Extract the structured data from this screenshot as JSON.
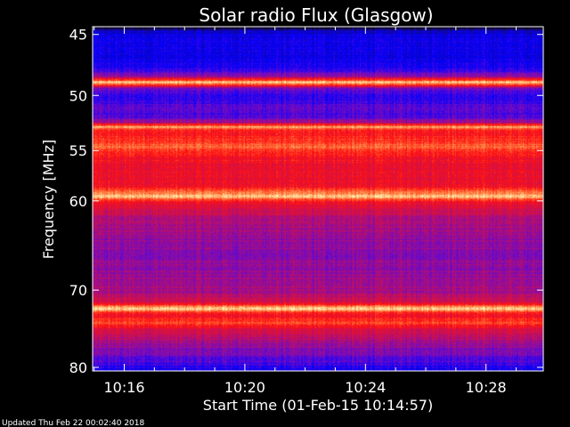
{
  "chart_data": {
    "type": "heatmap",
    "title": "Solar radio Flux (Glasgow)",
    "xlabel": "Start Time (01-Feb-15 10:14:57)",
    "ylabel": "Frequency [MHz]",
    "x_ticks": [
      "10:16",
      "10:20",
      "10:24",
      "10:28"
    ],
    "x_tick_minutes": [
      16,
      20,
      24,
      28
    ],
    "xlim_minutes": [
      14.95,
      29.9
    ],
    "y_ticks": [
      45,
      50,
      55,
      60,
      70,
      80
    ],
    "y_scale": "log",
    "ylim": [
      44.4,
      80.5
    ],
    "colormap": [
      "#000000",
      "#1a0a66",
      "#0000ff",
      "#6a0acc",
      "#c01060",
      "#ff1010",
      "#ff8040",
      "#ffffc0"
    ],
    "intensity_profile": [
      {
        "mhz": 44.4,
        "level": 0.02
      },
      {
        "mhz": 44.8,
        "level": 0.25
      },
      {
        "mhz": 45.5,
        "level": 0.3
      },
      {
        "mhz": 46.5,
        "level": 0.28
      },
      {
        "mhz": 47.6,
        "level": 0.3
      },
      {
        "mhz": 48.4,
        "level": 0.5
      },
      {
        "mhz": 48.9,
        "level": 0.97
      },
      {
        "mhz": 49.4,
        "level": 0.45
      },
      {
        "mhz": 50.2,
        "level": 0.33
      },
      {
        "mhz": 51.0,
        "level": 0.42
      },
      {
        "mhz": 51.8,
        "level": 0.38
      },
      {
        "mhz": 52.4,
        "level": 0.52
      },
      {
        "mhz": 52.8,
        "level": 0.9
      },
      {
        "mhz": 53.2,
        "level": 0.7
      },
      {
        "mhz": 54.0,
        "level": 0.74
      },
      {
        "mhz": 54.5,
        "level": 0.82
      },
      {
        "mhz": 55.5,
        "level": 0.7
      },
      {
        "mhz": 57.0,
        "level": 0.66
      },
      {
        "mhz": 58.5,
        "level": 0.68
      },
      {
        "mhz": 59.5,
        "level": 0.95
      },
      {
        "mhz": 60.3,
        "level": 0.64
      },
      {
        "mhz": 62.0,
        "level": 0.55
      },
      {
        "mhz": 64.0,
        "level": 0.5
      },
      {
        "mhz": 66.0,
        "level": 0.48
      },
      {
        "mhz": 68.0,
        "level": 0.5
      },
      {
        "mhz": 70.0,
        "level": 0.52
      },
      {
        "mhz": 71.5,
        "level": 0.62
      },
      {
        "mhz": 72.3,
        "level": 0.96
      },
      {
        "mhz": 73.0,
        "level": 0.66
      },
      {
        "mhz": 74.0,
        "level": 0.78
      },
      {
        "mhz": 75.0,
        "level": 0.62
      },
      {
        "mhz": 77.0,
        "level": 0.5
      },
      {
        "mhz": 79.0,
        "level": 0.4
      },
      {
        "mhz": 80.5,
        "level": 0.3
      }
    ]
  },
  "footer": {
    "updated": "Updated Thu Feb 22 00:02:40 2018"
  }
}
